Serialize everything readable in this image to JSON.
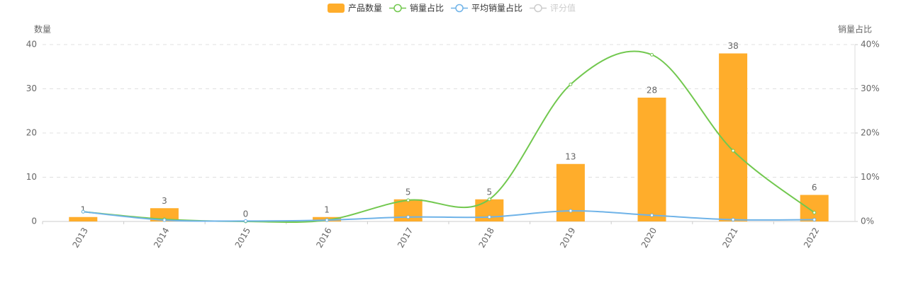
{
  "chart_data": {
    "type": "bar",
    "categories": [
      "2013",
      "2014",
      "2015",
      "2016",
      "2017",
      "2018",
      "2019",
      "2020",
      "2021",
      "2022"
    ],
    "y_label": "数量",
    "y2_label": "销量占比",
    "ylim": [
      0,
      40
    ],
    "yticks": [
      0,
      10,
      20,
      30,
      40
    ],
    "y2lim": [
      0,
      40
    ],
    "y2ticks": [
      {
        "value": 0,
        "label": "0%"
      },
      {
        "value": 10,
        "label": "10%"
      },
      {
        "value": 20,
        "label": "20%"
      },
      {
        "value": 30,
        "label": "30%"
      },
      {
        "value": 40,
        "label": "40%"
      }
    ],
    "grid": true,
    "series": [
      {
        "name": "产品数量",
        "type": "bar",
        "color": "#ffad2b",
        "values": [
          1,
          3,
          0,
          1,
          5,
          5,
          13,
          28,
          38,
          6
        ],
        "data_labels": true
      },
      {
        "name": "销量占比",
        "type": "line",
        "axis": "y2",
        "smooth": true,
        "color": "#72c84f",
        "values": [
          2.2,
          0.5,
          0,
          0.3,
          4.8,
          5,
          31,
          37.7,
          16,
          2
        ]
      },
      {
        "name": "平均销量占比",
        "type": "line",
        "axis": "y2",
        "smooth": true,
        "color": "#6fb3e8",
        "values": [
          2.2,
          0.3,
          0.1,
          0.3,
          1,
          1,
          2.4,
          1.4,
          0.4,
          0.4
        ]
      },
      {
        "name": "评分值",
        "type": "line",
        "color": "#cccccc",
        "hidden": true
      }
    ]
  }
}
